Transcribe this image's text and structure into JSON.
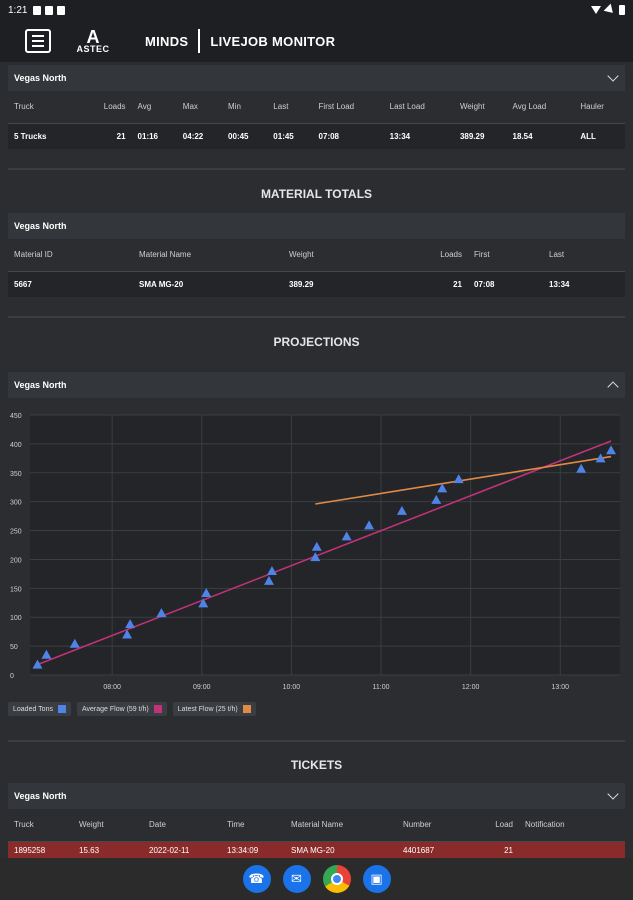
{
  "status": {
    "time": "1:21"
  },
  "app": {
    "brand": "MINDS",
    "title": "LIVEJOB MONITOR",
    "logo_letter": "A",
    "logo_text": "ASTEC"
  },
  "trucks": {
    "panel": "Vegas North",
    "headers": [
      "Truck",
      "Loads",
      "Avg",
      "Max",
      "Min",
      "Last",
      "First Load",
      "Last Load",
      "Weight",
      "Avg Load",
      "Hauler"
    ],
    "row": [
      "5 Trucks",
      "21",
      "01:16",
      "04:22",
      "00:45",
      "01:45",
      "07:08",
      "13:34",
      "389.29",
      "18.54",
      "ALL"
    ]
  },
  "materials": {
    "title": "MATERIAL TOTALS",
    "panel": "Vegas North",
    "headers": [
      "Material ID",
      "Material Name",
      "Weight",
      "Loads",
      "First",
      "Last"
    ],
    "row": [
      "5667",
      "SMA MG-20",
      "389.29",
      "21",
      "07:08",
      "13:34"
    ]
  },
  "projections": {
    "title": "PROJECTIONS",
    "panel": "Vegas North"
  },
  "chart_data": {
    "type": "scatter",
    "x_ticks": [
      "08:00",
      "09:00",
      "10:00",
      "11:00",
      "12:00",
      "13:00"
    ],
    "y_ticks": [
      0,
      50,
      100,
      150,
      200,
      250,
      300,
      350,
      400,
      450
    ],
    "xlim": [
      "07:05",
      "13:40"
    ],
    "ylim": [
      0,
      450
    ],
    "grid": true,
    "legend_placement": "bottom-left",
    "series": [
      {
        "name": "Loaded Tons",
        "color": "#4f83e8",
        "kind": "triangle",
        "points": [
          [
            "07:10",
            18
          ],
          [
            "07:16",
            35
          ],
          [
            "07:35",
            54
          ],
          [
            "08:10",
            70
          ],
          [
            "08:12",
            88
          ],
          [
            "08:33",
            107
          ],
          [
            "09:01",
            124
          ],
          [
            "09:03",
            142
          ],
          [
            "09:45",
            163
          ],
          [
            "09:47",
            180
          ],
          [
            "10:16",
            204
          ],
          [
            "10:17",
            222
          ],
          [
            "10:37",
            240
          ],
          [
            "10:52",
            259
          ],
          [
            "11:14",
            284
          ],
          [
            "11:37",
            303
          ],
          [
            "11:41",
            323
          ],
          [
            "11:52",
            339
          ],
          [
            "13:14",
            357
          ],
          [
            "13:27",
            375
          ],
          [
            "13:34",
            389
          ]
        ]
      },
      {
        "name": "Average Flow (59 t/h)",
        "color": "#c0327a",
        "kind": "line",
        "points": [
          [
            "07:10",
            18
          ],
          [
            "13:34",
            405
          ]
        ]
      },
      {
        "name": "Latest Flow (25 t/h)",
        "color": "#e08a48",
        "kind": "line",
        "points": [
          [
            "10:16",
            296
          ],
          [
            "13:34",
            378
          ]
        ]
      }
    ]
  },
  "tickets": {
    "title": "TICKETS",
    "panel": "Vegas North",
    "headers": [
      "Truck",
      "Weight",
      "Date",
      "Time",
      "Material Name",
      "Number",
      "Load",
      "Notification"
    ],
    "row": [
      "1895258",
      "15.63",
      "2022-02-11",
      "13:34:09",
      "SMA MG-20",
      "4401687",
      "21",
      ""
    ]
  }
}
